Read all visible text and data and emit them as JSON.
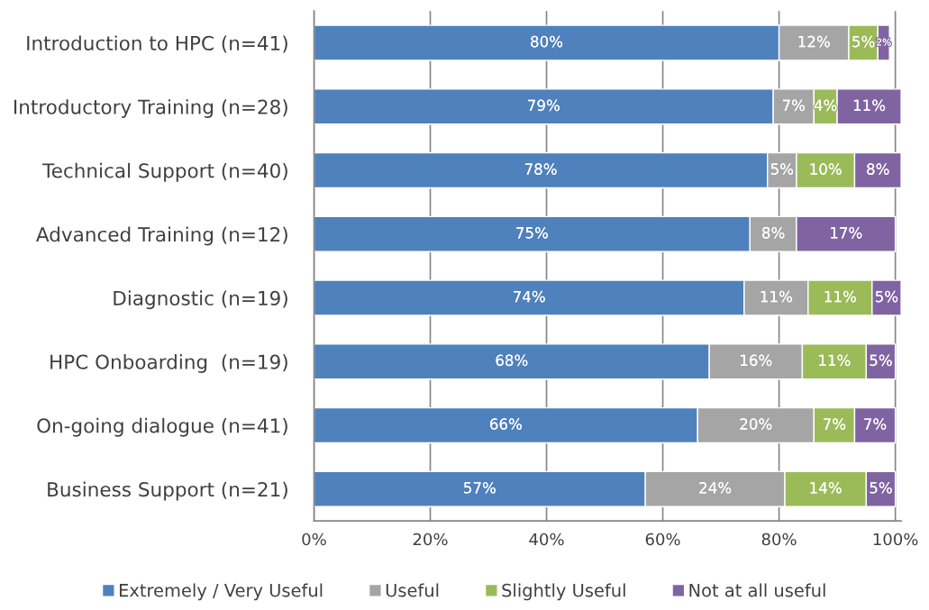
{
  "chart_data": {
    "type": "bar",
    "orientation": "horizontal",
    "stacked": true,
    "categories": [
      "Introduction to HPC (n=41)",
      "Introductory Training (n=28)",
      "Technical Support (n=40)",
      "Advanced Training (n=12)",
      "Diagnostic (n=19)",
      "HPC Onboarding  (n=19)",
      "On-going dialogue (n=41)",
      "Business Support (n=21)"
    ],
    "series": [
      {
        "name": "Extremely / Very Useful",
        "color": "#4f81bd",
        "values": [
          80,
          79,
          78,
          75,
          74,
          68,
          66,
          57
        ],
        "value_labels": [
          "80%",
          "79%",
          "78%",
          "75%",
          "74%",
          "68%",
          "66%",
          "57%"
        ]
      },
      {
        "name": "Useful",
        "color": "#a5a5a5",
        "values": [
          12,
          7,
          5,
          8,
          11,
          16,
          20,
          24
        ],
        "value_labels": [
          "12%",
          "7%",
          "5%",
          "8%",
          "11%",
          "16%",
          "20%",
          "24%"
        ]
      },
      {
        "name": "Slightly Useful",
        "color": "#9bbb59",
        "values": [
          5,
          4,
          10,
          null,
          11,
          11,
          7,
          14
        ],
        "value_labels": [
          "5%",
          "4%",
          "10%",
          null,
          "11%",
          "11%",
          "7%",
          "14%"
        ]
      },
      {
        "name": "Not at all useful",
        "color": "#8064a2",
        "values": [
          2,
          11,
          8,
          17,
          5,
          5,
          7,
          5
        ],
        "value_labels": [
          "2%",
          "11%",
          "8%",
          "17%",
          "5%",
          "5%",
          "7%",
          "5%"
        ]
      }
    ],
    "xlim": [
      0,
      101
    ],
    "xticks": [
      {
        "value": 0,
        "label": "0%"
      },
      {
        "value": 20,
        "label": "20%"
      },
      {
        "value": 40,
        "label": "40%"
      },
      {
        "value": 60,
        "label": "60%"
      },
      {
        "value": 80,
        "label": "80%"
      },
      {
        "value": 100,
        "label": "100%"
      }
    ],
    "grid": "x",
    "legend": "bottom"
  }
}
